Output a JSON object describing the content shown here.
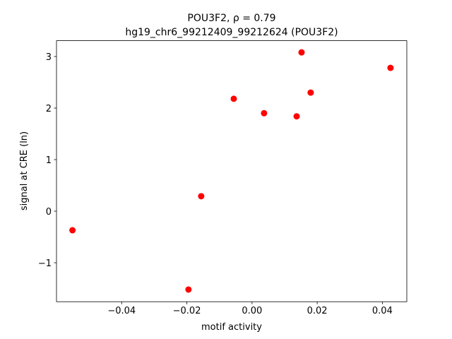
{
  "chart_data": {
    "type": "scatter",
    "title": "POU3F2, ρ = 0.79",
    "subtitle": "hg19_chr6_99212409_99212624 (POU3F2)",
    "x_label": "motif activity",
    "y_label": "signal at CRE (ln)",
    "color": "#ff0000",
    "x": [
      -0.0551,
      -0.0195,
      -0.0156,
      -0.0056,
      0.0037,
      0.0137,
      0.0152,
      0.018,
      0.0425
    ],
    "values": [
      -0.37,
      -1.52,
      0.29,
      2.18,
      1.9,
      1.84,
      3.08,
      2.3,
      2.78
    ],
    "xlim": [
      -0.06,
      0.0475
    ],
    "ylim": [
      -1.756,
      3.307
    ],
    "xticks": [
      {
        "value": -0.04,
        "label": "−0.04"
      },
      {
        "value": -0.02,
        "label": "−0.02"
      },
      {
        "value": 0,
        "label": "0.00"
      },
      {
        "value": 0.02,
        "label": "0.02"
      },
      {
        "value": 0.04,
        "label": "0.04"
      }
    ],
    "yticks": [
      {
        "value": -1,
        "label": "−1"
      },
      0,
      1,
      2,
      3
    ]
  }
}
